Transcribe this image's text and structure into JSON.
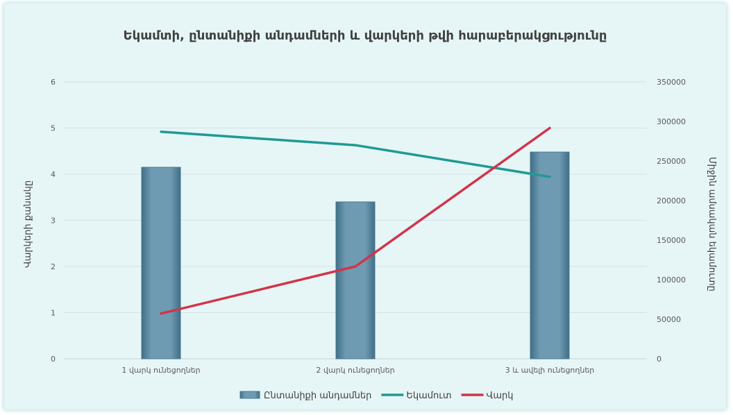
{
  "chart_data": {
    "type": "bar",
    "title": "Եկամտի, ընտանիքի անդամների և վարկերի թվի հարաբերակցությունը",
    "categories": [
      "1 վարկ ունեցողներ",
      "2 վարկ ունեցողներ",
      "3 և ավելի ունեցողներ"
    ],
    "ylabel_left": "Վարկերի քանակը",
    "ylabel_right": "Միջին ամսական եկամուտը",
    "ylim_left": [
      0,
      6
    ],
    "ylim_right": [
      0,
      350000
    ],
    "yticks_left": [
      "0",
      "1",
      "2",
      "3",
      "4",
      "5",
      "6"
    ],
    "yticks_right": [
      "0",
      "50000",
      "100000",
      "150000",
      "200000",
      "250000",
      "300000",
      "350000"
    ],
    "grid": true,
    "legend_position": "bottom",
    "series": [
      {
        "name": "Ընտանիքի անդամներ",
        "kind": "bar",
        "axis": "left",
        "color": "#6a96ad",
        "values": [
          4.15,
          3.4,
          4.48
        ]
      },
      {
        "name": "Եկամուտ",
        "kind": "line",
        "axis": "right",
        "color": "#1e9a94",
        "values": [
          287000,
          270000,
          230000
        ]
      },
      {
        "name": "Վարկ",
        "kind": "line",
        "axis": "left",
        "color": "#d1344a",
        "values": [
          0.98,
          2.0,
          5.0
        ]
      }
    ]
  }
}
